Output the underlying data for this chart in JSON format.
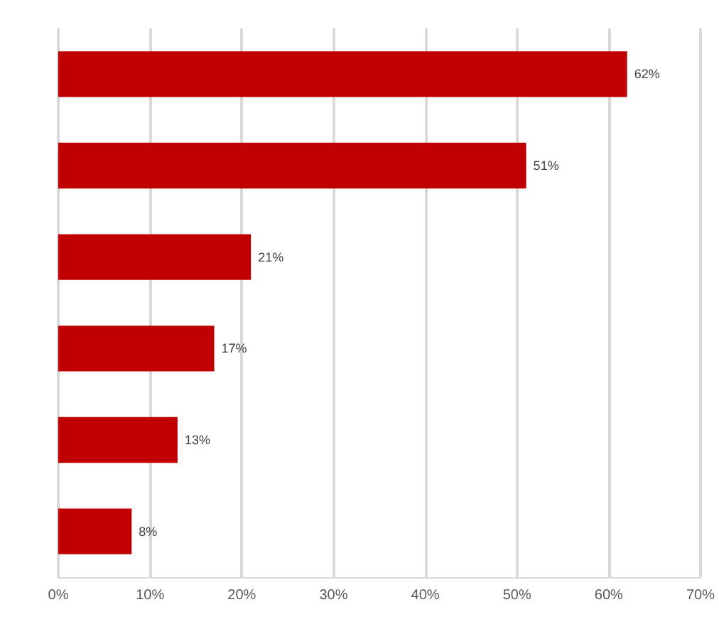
{
  "chart_data": {
    "type": "bar",
    "orientation": "horizontal",
    "categories": [
      null,
      null,
      null,
      null,
      null,
      null
    ],
    "values": [
      62,
      51,
      21,
      17,
      13,
      8
    ],
    "color": "#c00000",
    "xlim": [
      0,
      70
    ],
    "xticks": [
      {
        "value": 0,
        "label": "0%"
      },
      {
        "value": 10,
        "label": "10%"
      },
      {
        "value": 20,
        "label": "20%"
      },
      {
        "value": 30,
        "label": "30%"
      },
      {
        "value": 40,
        "label": "40%"
      },
      {
        "value": 50,
        "label": "50%"
      },
      {
        "value": 60,
        "label": "60%"
      },
      {
        "value": 70,
        "label": "70%"
      }
    ],
    "grid": "x",
    "data_labels": true,
    "value_labels": [
      "62%",
      "51%",
      "21%",
      "17%",
      "13%",
      "8%"
    ]
  }
}
